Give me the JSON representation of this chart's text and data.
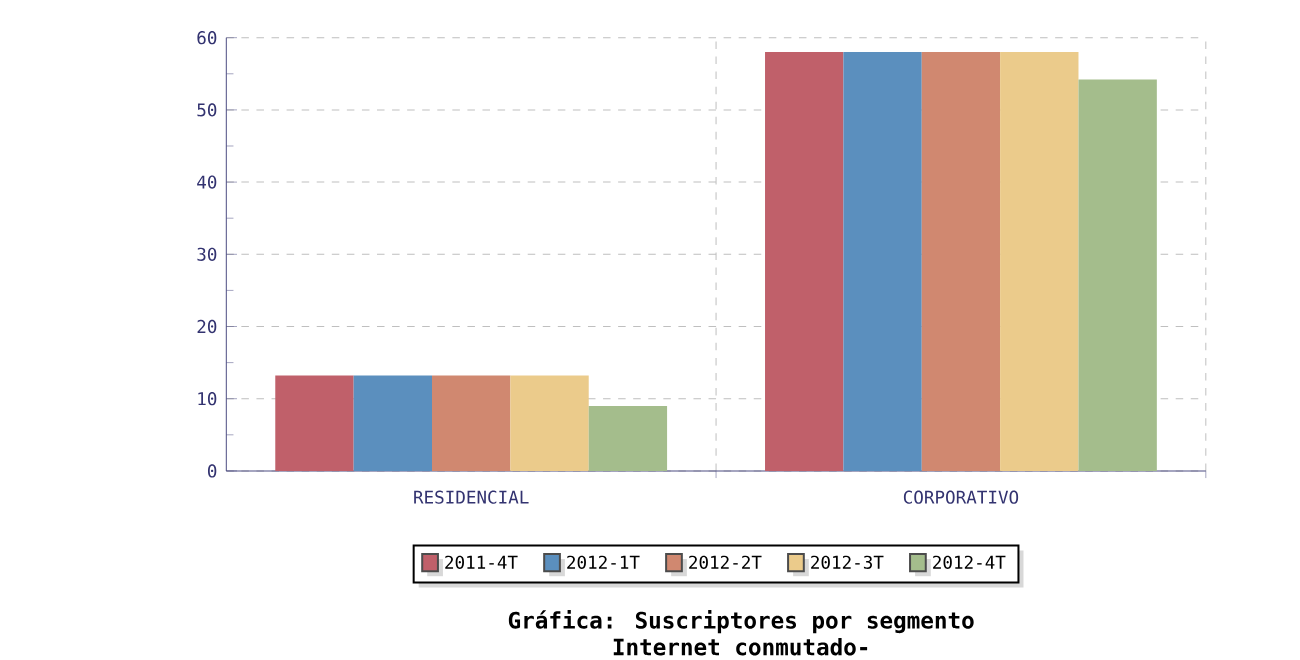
{
  "chart_data": {
    "type": "bar",
    "title": "Gráfica: Suscriptores por segmento",
    "subtitle": "Internet conmutado-",
    "categories": [
      "RESIDENCIAL",
      "CORPORATIVO"
    ],
    "series": [
      {
        "name": "2011-4T",
        "color": "#c0606a",
        "values": [
          13.2,
          58
        ]
      },
      {
        "name": "2012-1T",
        "color": "#5b8fbe",
        "values": [
          13.2,
          58
        ]
      },
      {
        "name": "2012-2T",
        "color": "#d08870",
        "values": [
          13.2,
          58
        ]
      },
      {
        "name": "2012-3T",
        "color": "#ebcb8b",
        "values": [
          13.2,
          58
        ]
      },
      {
        "name": "2012-4T",
        "color": "#a4bd8c",
        "values": [
          9,
          54.2
        ]
      }
    ],
    "ylim": [
      0,
      60
    ],
    "yticks": [
      0,
      10,
      20,
      30,
      40,
      50,
      60
    ],
    "grid": true,
    "legend": "bottom"
  }
}
